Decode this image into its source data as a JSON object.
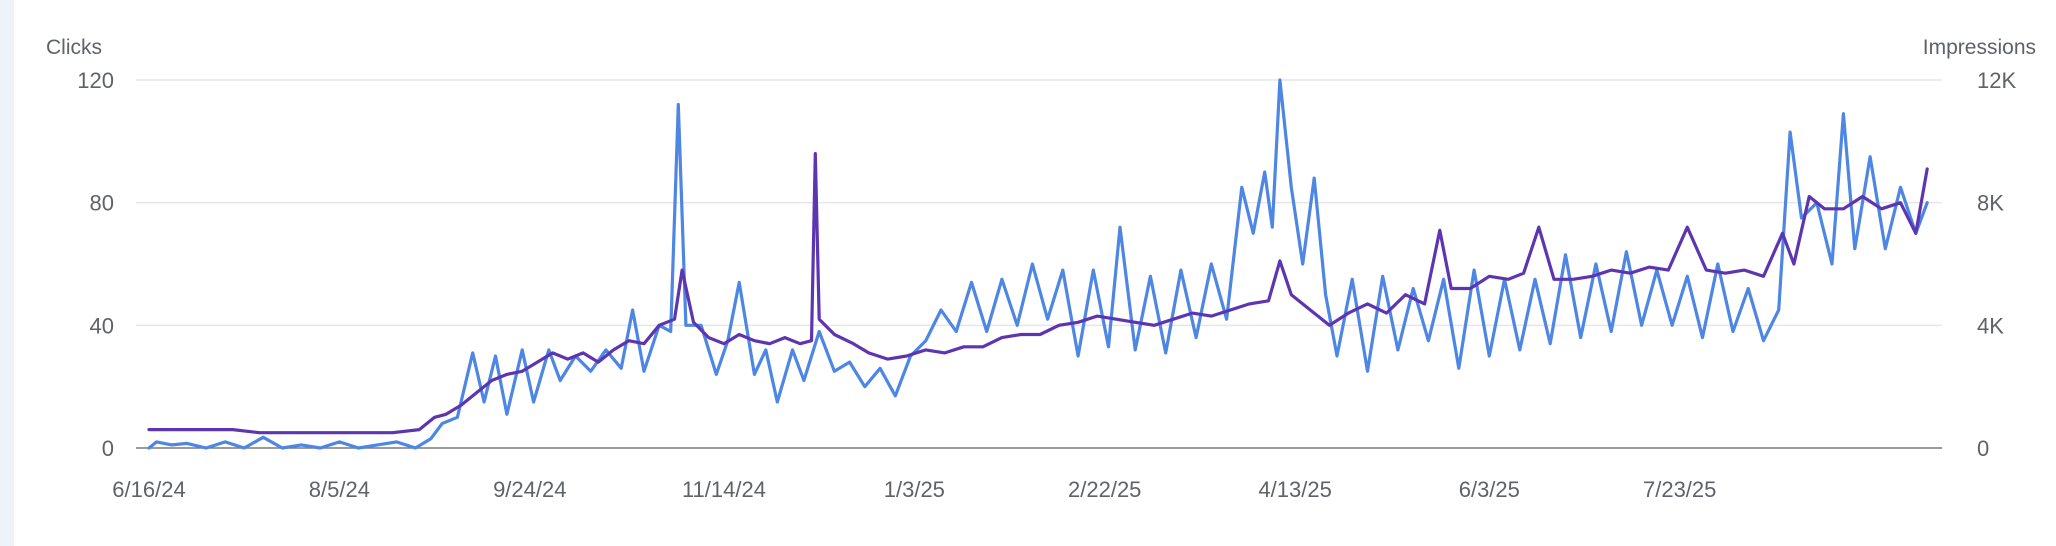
{
  "chart_data": {
    "type": "line",
    "y_left_label": "Clicks",
    "y_right_label": "Impressions",
    "y_left_ticks": [
      "0",
      "40",
      "80",
      "120"
    ],
    "y_right_ticks": [
      "0",
      "4K",
      "8K",
      "12K"
    ],
    "y_left_range": [
      0,
      120
    ],
    "y_right_range": [
      0,
      12000
    ],
    "x_range": [
      "2024-06-16",
      "2025-09-27"
    ],
    "x_tick_labels": [
      "6/16/24",
      "8/5/24",
      "9/24/24",
      "11/14/24",
      "1/3/25",
      "2/22/25",
      "4/13/25",
      "6/3/25",
      "7/23/25"
    ],
    "x_tick_dates": [
      "2024-06-16",
      "2024-08-05",
      "2024-09-24",
      "2024-11-14",
      "2025-01-03",
      "2025-02-22",
      "2025-04-13",
      "2025-06-03",
      "2025-07-23"
    ],
    "grid": true,
    "series": [
      {
        "name": "Clicks",
        "axis": "left",
        "color": "#5e35b1",
        "points": [
          [
            "2024-06-16",
            6
          ],
          [
            "2024-06-20",
            6
          ],
          [
            "2024-06-25",
            6
          ],
          [
            "2024-07-01",
            6
          ],
          [
            "2024-07-08",
            6
          ],
          [
            "2024-07-15",
            5
          ],
          [
            "2024-07-22",
            5
          ],
          [
            "2024-07-29",
            5
          ],
          [
            "2024-08-05",
            5
          ],
          [
            "2024-08-12",
            5
          ],
          [
            "2024-08-19",
            5
          ],
          [
            "2024-08-26",
            6
          ],
          [
            "2024-08-30",
            10
          ],
          [
            "2024-09-02",
            11
          ],
          [
            "2024-09-06",
            14
          ],
          [
            "2024-09-10",
            18
          ],
          [
            "2024-09-14",
            22
          ],
          [
            "2024-09-18",
            24
          ],
          [
            "2024-09-22",
            25
          ],
          [
            "2024-09-26",
            28
          ],
          [
            "2024-09-30",
            31
          ],
          [
            "2024-10-04",
            29
          ],
          [
            "2024-10-08",
            31
          ],
          [
            "2024-10-12",
            28
          ],
          [
            "2024-10-16",
            32
          ],
          [
            "2024-10-20",
            35
          ],
          [
            "2024-10-24",
            34
          ],
          [
            "2024-10-28",
            40
          ],
          [
            "2024-11-01",
            42
          ],
          [
            "2024-11-03",
            58
          ],
          [
            "2024-11-06",
            41
          ],
          [
            "2024-11-10",
            36
          ],
          [
            "2024-11-14",
            34
          ],
          [
            "2024-11-18",
            37
          ],
          [
            "2024-11-22",
            35
          ],
          [
            "2024-11-26",
            34
          ],
          [
            "2024-11-30",
            36
          ],
          [
            "2024-12-04",
            34
          ],
          [
            "2024-12-07",
            35
          ],
          [
            "2024-12-08",
            96
          ],
          [
            "2024-12-09",
            42
          ],
          [
            "2024-12-13",
            37
          ],
          [
            "2024-12-18",
            34
          ],
          [
            "2024-12-22",
            31
          ],
          [
            "2024-12-27",
            29
          ],
          [
            "2025-01-01",
            30
          ],
          [
            "2025-01-06",
            32
          ],
          [
            "2025-01-11",
            31
          ],
          [
            "2025-01-16",
            33
          ],
          [
            "2025-01-21",
            33
          ],
          [
            "2025-01-26",
            36
          ],
          [
            "2025-01-31",
            37
          ],
          [
            "2025-02-05",
            37
          ],
          [
            "2025-02-10",
            40
          ],
          [
            "2025-02-15",
            41
          ],
          [
            "2025-02-20",
            43
          ],
          [
            "2025-02-25",
            42
          ],
          [
            "2025-03-02",
            41
          ],
          [
            "2025-03-07",
            40
          ],
          [
            "2025-03-12",
            42
          ],
          [
            "2025-03-17",
            44
          ],
          [
            "2025-03-22",
            43
          ],
          [
            "2025-03-27",
            45
          ],
          [
            "2025-04-01",
            47
          ],
          [
            "2025-04-06",
            48
          ],
          [
            "2025-04-09",
            61
          ],
          [
            "2025-04-12",
            50
          ],
          [
            "2025-04-17",
            45
          ],
          [
            "2025-04-22",
            40
          ],
          [
            "2025-04-27",
            44
          ],
          [
            "2025-05-02",
            47
          ],
          [
            "2025-05-07",
            44
          ],
          [
            "2025-05-12",
            50
          ],
          [
            "2025-05-17",
            47
          ],
          [
            "2025-05-21",
            71
          ],
          [
            "2025-05-24",
            52
          ],
          [
            "2025-05-29",
            52
          ],
          [
            "2025-06-03",
            56
          ],
          [
            "2025-06-08",
            55
          ],
          [
            "2025-06-12",
            57
          ],
          [
            "2025-06-16",
            72
          ],
          [
            "2025-06-20",
            55
          ],
          [
            "2025-06-25",
            55
          ],
          [
            "2025-06-30",
            56
          ],
          [
            "2025-07-05",
            58
          ],
          [
            "2025-07-10",
            57
          ],
          [
            "2025-07-15",
            59
          ],
          [
            "2025-07-20",
            58
          ],
          [
            "2025-07-25",
            72
          ],
          [
            "2025-07-30",
            58
          ],
          [
            "2025-08-04",
            57
          ],
          [
            "2025-08-09",
            58
          ],
          [
            "2025-08-14",
            56
          ],
          [
            "2025-08-19",
            70
          ],
          [
            "2025-08-22",
            60
          ],
          [
            "2025-08-26",
            82
          ],
          [
            "2025-08-30",
            78
          ],
          [
            "2025-09-04",
            78
          ],
          [
            "2025-09-09",
            82
          ],
          [
            "2025-09-14",
            78
          ],
          [
            "2025-09-19",
            80
          ],
          [
            "2025-09-23",
            70
          ],
          [
            "2025-09-26",
            91
          ]
        ]
      },
      {
        "name": "Impressions",
        "axis": "right",
        "color": "#4e86e4",
        "points": [
          [
            "2024-06-16",
            0
          ],
          [
            "2024-06-18",
            200
          ],
          [
            "2024-06-22",
            100
          ],
          [
            "2024-06-26",
            150
          ],
          [
            "2024-07-01",
            0
          ],
          [
            "2024-07-06",
            200
          ],
          [
            "2024-07-11",
            0
          ],
          [
            "2024-07-16",
            350
          ],
          [
            "2024-07-21",
            0
          ],
          [
            "2024-07-26",
            100
          ],
          [
            "2024-07-31",
            0
          ],
          [
            "2024-08-05",
            200
          ],
          [
            "2024-08-10",
            0
          ],
          [
            "2024-08-15",
            100
          ],
          [
            "2024-08-20",
            200
          ],
          [
            "2024-08-25",
            0
          ],
          [
            "2024-08-29",
            300
          ],
          [
            "2024-09-01",
            800
          ],
          [
            "2024-09-05",
            1000
          ],
          [
            "2024-09-09",
            3100
          ],
          [
            "2024-09-12",
            1500
          ],
          [
            "2024-09-15",
            3000
          ],
          [
            "2024-09-18",
            1100
          ],
          [
            "2024-09-22",
            3200
          ],
          [
            "2024-09-25",
            1500
          ],
          [
            "2024-09-29",
            3200
          ],
          [
            "2024-10-02",
            2200
          ],
          [
            "2024-10-06",
            3000
          ],
          [
            "2024-10-10",
            2500
          ],
          [
            "2024-10-14",
            3200
          ],
          [
            "2024-10-18",
            2600
          ],
          [
            "2024-10-21",
            4500
          ],
          [
            "2024-10-24",
            2500
          ],
          [
            "2024-10-28",
            4000
          ],
          [
            "2024-10-31",
            3800
          ],
          [
            "2024-11-02",
            11200
          ],
          [
            "2024-11-04",
            4000
          ],
          [
            "2024-11-08",
            4000
          ],
          [
            "2024-11-12",
            2400
          ],
          [
            "2024-11-15",
            3500
          ],
          [
            "2024-11-18",
            5400
          ],
          [
            "2024-11-22",
            2400
          ],
          [
            "2024-11-25",
            3200
          ],
          [
            "2024-11-28",
            1500
          ],
          [
            "2024-12-02",
            3200
          ],
          [
            "2024-12-05",
            2200
          ],
          [
            "2024-12-09",
            3800
          ],
          [
            "2024-12-13",
            2500
          ],
          [
            "2024-12-17",
            2800
          ],
          [
            "2024-12-21",
            2000
          ],
          [
            "2024-12-25",
            2600
          ],
          [
            "2024-12-29",
            1700
          ],
          [
            "2025-01-02",
            3000
          ],
          [
            "2025-01-06",
            3500
          ],
          [
            "2025-01-10",
            4500
          ],
          [
            "2025-01-14",
            3800
          ],
          [
            "2025-01-18",
            5400
          ],
          [
            "2025-01-22",
            3800
          ],
          [
            "2025-01-26",
            5500
          ],
          [
            "2025-01-30",
            4000
          ],
          [
            "2025-02-03",
            6000
          ],
          [
            "2025-02-07",
            4200
          ],
          [
            "2025-02-11",
            5800
          ],
          [
            "2025-02-15",
            3000
          ],
          [
            "2025-02-19",
            5800
          ],
          [
            "2025-02-23",
            3300
          ],
          [
            "2025-02-26",
            7200
          ],
          [
            "2025-03-02",
            3200
          ],
          [
            "2025-03-06",
            5600
          ],
          [
            "2025-03-10",
            3100
          ],
          [
            "2025-03-14",
            5800
          ],
          [
            "2025-03-18",
            3600
          ],
          [
            "2025-03-22",
            6000
          ],
          [
            "2025-03-26",
            4200
          ],
          [
            "2025-03-30",
            8500
          ],
          [
            "2025-04-02",
            7000
          ],
          [
            "2025-04-05",
            9000
          ],
          [
            "2025-04-07",
            7200
          ],
          [
            "2025-04-09",
            12000
          ],
          [
            "2025-04-12",
            8500
          ],
          [
            "2025-04-15",
            6000
          ],
          [
            "2025-04-18",
            8800
          ],
          [
            "2025-04-21",
            5000
          ],
          [
            "2025-04-24",
            3000
          ],
          [
            "2025-04-28",
            5500
          ],
          [
            "2025-05-02",
            2500
          ],
          [
            "2025-05-06",
            5600
          ],
          [
            "2025-05-10",
            3200
          ],
          [
            "2025-05-14",
            5200
          ],
          [
            "2025-05-18",
            3500
          ],
          [
            "2025-05-22",
            5500
          ],
          [
            "2025-05-26",
            2600
          ],
          [
            "2025-05-30",
            5800
          ],
          [
            "2025-06-03",
            3000
          ],
          [
            "2025-06-07",
            5500
          ],
          [
            "2025-06-11",
            3200
          ],
          [
            "2025-06-15",
            5500
          ],
          [
            "2025-06-19",
            3400
          ],
          [
            "2025-06-23",
            6300
          ],
          [
            "2025-06-27",
            3600
          ],
          [
            "2025-07-01",
            6000
          ],
          [
            "2025-07-05",
            3800
          ],
          [
            "2025-07-09",
            6400
          ],
          [
            "2025-07-13",
            4000
          ],
          [
            "2025-07-17",
            5800
          ],
          [
            "2025-07-21",
            4000
          ],
          [
            "2025-07-25",
            5600
          ],
          [
            "2025-07-29",
            3600
          ],
          [
            "2025-08-02",
            6000
          ],
          [
            "2025-08-06",
            3800
          ],
          [
            "2025-08-10",
            5200
          ],
          [
            "2025-08-14",
            3500
          ],
          [
            "2025-08-18",
            4500
          ],
          [
            "2025-08-21",
            10300
          ],
          [
            "2025-08-24",
            7500
          ],
          [
            "2025-08-28",
            8000
          ],
          [
            "2025-09-01",
            6000
          ],
          [
            "2025-09-04",
            10900
          ],
          [
            "2025-09-07",
            6500
          ],
          [
            "2025-09-11",
            9500
          ],
          [
            "2025-09-15",
            6500
          ],
          [
            "2025-09-19",
            8500
          ],
          [
            "2025-09-23",
            7000
          ],
          [
            "2025-09-26",
            8000
          ]
        ]
      }
    ]
  }
}
